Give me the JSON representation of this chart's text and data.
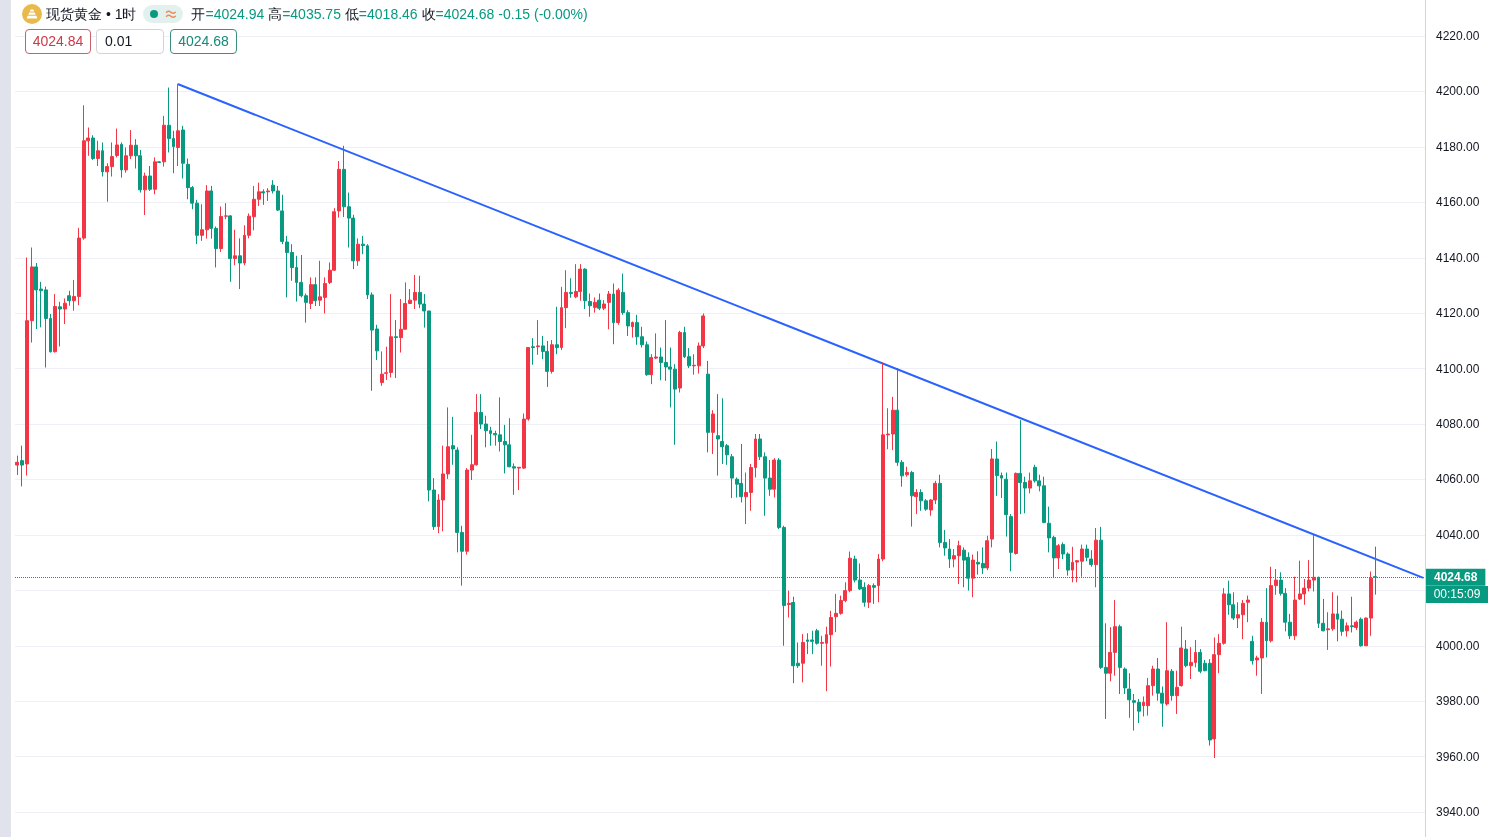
{
  "chart_data": {
    "type": "candlestick",
    "title": "现货黄金 • 1时",
    "categories": [
      null,
      null,
      null,
      null,
      null,
      null,
      null,
      null,
      null,
      null,
      null,
      null,
      null,
      null,
      null,
      null,
      null,
      null,
      null,
      null,
      null,
      null,
      null,
      null,
      null,
      null,
      null,
      null,
      null,
      null,
      null,
      null,
      null,
      null,
      null,
      null,
      null,
      null,
      null,
      null,
      null,
      null,
      null,
      null,
      null,
      null,
      null,
      null,
      null,
      null,
      null,
      null,
      null,
      null,
      null,
      null,
      null,
      null,
      null,
      null,
      null,
      null,
      null,
      null,
      null,
      null,
      null,
      null,
      null,
      null,
      null,
      null,
      null,
      null,
      null,
      null,
      null,
      null,
      null,
      null,
      null,
      null,
      null,
      null,
      null,
      null,
      null,
      null,
      null,
      null,
      null,
      null,
      null,
      null,
      null,
      null,
      null,
      null,
      null,
      null,
      null,
      null,
      null,
      null,
      null,
      null,
      null,
      null,
      null,
      null,
      null,
      null,
      null,
      null,
      null,
      null,
      null,
      null,
      null,
      null,
      null,
      null,
      null,
      null,
      null,
      null,
      null,
      null,
      null,
      null,
      null,
      null,
      null,
      null,
      null,
      null,
      null,
      null,
      null,
      null,
      null,
      null,
      null,
      null,
      null,
      null,
      null,
      null,
      null,
      null,
      null,
      null,
      null,
      null,
      null,
      null,
      null,
      null,
      null,
      null,
      null,
      null,
      null,
      null,
      null,
      null,
      null,
      null,
      null,
      null,
      null,
      null,
      null,
      null,
      null,
      null,
      null,
      null,
      null,
      null,
      null,
      null,
      null,
      null,
      null,
      null,
      null,
      null,
      null,
      null,
      null,
      null,
      null,
      null,
      null,
      null,
      null,
      null,
      null,
      null,
      null,
      null,
      null,
      null,
      null,
      null,
      null,
      null,
      null,
      null,
      null,
      null,
      null,
      null,
      null,
      null,
      null,
      null,
      null,
      null,
      null,
      null,
      null,
      null,
      null,
      null,
      null,
      null,
      null,
      null,
      null,
      null,
      null,
      null,
      null,
      null,
      null,
      null,
      null,
      null,
      null,
      null,
      null,
      null,
      null,
      null,
      null,
      null,
      null,
      null,
      null,
      null,
      null,
      null,
      null,
      null,
      null,
      null,
      null,
      null,
      null,
      null,
      null,
      null,
      null,
      null,
      null,
      null,
      null,
      null,
      null,
      null,
      null,
      null,
      null,
      null,
      null,
      null,
      null,
      null,
      null,
      null,
      null,
      null,
      null,
      null,
      null,
      null,
      null,
      null,
      null,
      null,
      null,
      null,
      null,
      null,
      null,
      null
    ],
    "ohlc": [
      [
        4065.2,
        4068.6,
        4061.6,
        4066.2
      ],
      [
        4066.8,
        4072.2,
        4057.5,
        4065.2
      ],
      [
        4065.6,
        4140.1,
        4061.4,
        4117.3
      ],
      [
        4117.3,
        4143.7,
        4109.4,
        4136.7
      ],
      [
        4136.7,
        4138.1,
        4114.3,
        4128.4
      ],
      [
        4128.7,
        4131.3,
        4114.9,
        4128.1
      ],
      [
        4128.4,
        4129.6,
        4100.4,
        4118.1
      ],
      [
        4118.1,
        4119.7,
        4105.8,
        4106.1
      ],
      [
        4106.1,
        4126.9,
        4105.8,
        4122.4
      ],
      [
        4122.3,
        4124.1,
        4108.0,
        4121.5
      ],
      [
        4121.5,
        4125.3,
        4116.1,
        4123.6
      ],
      [
        4126.3,
        4128.1,
        4122.7,
        4124.5
      ],
      [
        4124.5,
        4132.0,
        4120.9,
        4126.0
      ],
      [
        4126.0,
        4150.8,
        4122.9,
        4147.1
      ],
      [
        4147.1,
        4195.0,
        4146.5,
        4182.2
      ],
      [
        4182.2,
        4187.0,
        4176.8,
        4183.2
      ],
      [
        4183.2,
        4184.2,
        4175.3,
        4175.8
      ],
      [
        4175.8,
        4182.2,
        4173.1,
        4178.6
      ],
      [
        4178.6,
        4181.6,
        4169.3,
        4171.0
      ],
      [
        4171.0,
        4174.1,
        4160.2,
        4172.9
      ],
      [
        4172.9,
        4181.6,
        4169.3,
        4176.5
      ],
      [
        4176.9,
        4186.6,
        4176.2,
        4180.7
      ],
      [
        4180.9,
        4181.6,
        4168.9,
        4171.7
      ],
      [
        4171.7,
        4179.8,
        4170.7,
        4176.8
      ],
      [
        4176.8,
        4186.1,
        4175.6,
        4180.6
      ],
      [
        4180.6,
        4182.8,
        4172.2,
        4176.8
      ],
      [
        4176.8,
        4178.9,
        4163.5,
        4164.5
      ],
      [
        4164.5,
        4170.7,
        4155.4,
        4169.5
      ],
      [
        4169.5,
        4173.1,
        4164.1,
        4164.7
      ],
      [
        4164.7,
        4176.2,
        4162.9,
        4174.6
      ],
      [
        4174.6,
        4174.8,
        4174.2,
        4174.4
      ],
      [
        4174.6,
        4191.2,
        4172.9,
        4187.8
      ],
      [
        4187.8,
        4201.4,
        4178.0,
        4183.0
      ],
      [
        4183.0,
        4185.8,
        4170.5,
        4180.1
      ],
      [
        4179.8,
        4202.6,
        4173.1,
        4185.8
      ],
      [
        4186.1,
        4187.6,
        4168.6,
        4174.1
      ],
      [
        4173.7,
        4175.8,
        4161.1,
        4165.3
      ],
      [
        4165.3,
        4165.9,
        4157.5,
        4159.7
      ],
      [
        4159.7,
        4160.9,
        4144.9,
        4148.1
      ],
      [
        4148.1,
        4159.3,
        4146.1,
        4150.1
      ],
      [
        4150.1,
        4166.2,
        4146.9,
        4164.1
      ],
      [
        4164.1,
        4165.9,
        4146.9,
        4150.6
      ],
      [
        4150.6,
        4151.3,
        4136.5,
        4143.3
      ],
      [
        4143.3,
        4158.5,
        4142.1,
        4154.9
      ],
      [
        4155.0,
        4159.7,
        4153.9,
        4155.1
      ],
      [
        4155.1,
        4155.4,
        4131.3,
        4139.7
      ],
      [
        4139.7,
        4150.1,
        4137.3,
        4140.7
      ],
      [
        4140.7,
        4147.0,
        4128.7,
        4138.1
      ],
      [
        4138.1,
        4151.7,
        4137.3,
        4148.1
      ],
      [
        4148.1,
        4156.0,
        4147.0,
        4155.0
      ],
      [
        4154.8,
        4165.9,
        4149.9,
        4161.1
      ],
      [
        4161.1,
        4167.1,
        4158.7,
        4163.8
      ],
      [
        4163.8,
        4164.7,
        4159.1,
        4163.4
      ],
      [
        4163.8,
        4165.1,
        4160.5,
        4164.1
      ],
      [
        4166.2,
        4168.0,
        4163.2,
        4164.1
      ],
      [
        4164.1,
        4165.9,
        4156.9,
        4157.2
      ],
      [
        4156.9,
        4162.7,
        4144.9,
        4145.9
      ],
      [
        4145.7,
        4147.9,
        4125.7,
        4141.9
      ],
      [
        4141.9,
        4144.9,
        4131.7,
        4136.5
      ],
      [
        4136.5,
        4140.7,
        4124.2,
        4131.1
      ],
      [
        4131.1,
        4141.0,
        4125.7,
        4126.3
      ],
      [
        4126.3,
        4127.1,
        4116.6,
        4123.9
      ],
      [
        4123.5,
        4132.9,
        4121.5,
        4130.3
      ],
      [
        4130.3,
        4132.9,
        4122.6,
        4124.5
      ],
      [
        4124.7,
        4138.9,
        4122.6,
        4125.9
      ],
      [
        4125.7,
        4132.9,
        4119.9,
        4130.7
      ],
      [
        4131.1,
        4138.3,
        4130.5,
        4135.5
      ],
      [
        4135.5,
        4157.9,
        4135.3,
        4156.6
      ],
      [
        4156.9,
        4174.9,
        4154.5,
        4171.9
      ],
      [
        4171.9,
        4180.4,
        4154.7,
        4158.4
      ],
      [
        4158.4,
        4163.5,
        4143.7,
        4154.3
      ],
      [
        4154.3,
        4155.5,
        4135.9,
        4138.9
      ],
      [
        4138.9,
        4147.0,
        4137.1,
        4144.9
      ],
      [
        4144.9,
        4147.9,
        4141.3,
        4144.4
      ],
      [
        4144.3,
        4144.9,
        4125.1,
        4126.6
      ],
      [
        4126.6,
        4127.5,
        4092.0,
        4113.9
      ],
      [
        4114.3,
        4115.8,
        4103.1,
        4106.4
      ],
      [
        4095.0,
        4106.2,
        4093.8,
        4098.0
      ],
      [
        4098.3,
        4107.9,
        4095.9,
        4098.5
      ],
      [
        4098.6,
        4126.9,
        4096.8,
        4111.5
      ],
      [
        4111.5,
        4117.5,
        4096.6,
        4111.2
      ],
      [
        4111.2,
        4125.1,
        4105.8,
        4114.2
      ],
      [
        4114.2,
        4131.1,
        4114.2,
        4123.5
      ],
      [
        4123.5,
        4128.7,
        4123.3,
        4124.7
      ],
      [
        4124.7,
        4133.8,
        4121.5,
        4127.5
      ],
      [
        4127.5,
        4133.5,
        4121.8,
        4123.3
      ],
      [
        4123.3,
        4126.9,
        4114.8,
        4120.8
      ],
      [
        4120.8,
        4120.8,
        4052.1,
        4056.2
      ],
      [
        4056.2,
        4060.5,
        4041.8,
        4043.0
      ],
      [
        4043.0,
        4054.7,
        4040.6,
        4052.6
      ],
      [
        4052.6,
        4072.2,
        4041.3,
        4062.0
      ],
      [
        4062.0,
        4086.0,
        4060.2,
        4071.8
      ],
      [
        4072.2,
        4082.6,
        4065.3,
        4071.0
      ],
      [
        4070.6,
        4071.6,
        4033.7,
        4040.9
      ],
      [
        4040.9,
        4043.3,
        4021.7,
        4034.1
      ],
      [
        4034.1,
        4064.1,
        4032.9,
        4063.4
      ],
      [
        4063.4,
        4076.1,
        4059.8,
        4065.3
      ],
      [
        4065.3,
        4090.8,
        4065.0,
        4084.2
      ],
      [
        4084.2,
        4090.8,
        4078.2,
        4080.0
      ],
      [
        4080.0,
        4083.0,
        4071.6,
        4077.6
      ],
      [
        4077.6,
        4079.0,
        4072.2,
        4076.6
      ],
      [
        4076.6,
        4077.6,
        4072.2,
        4076.1
      ],
      [
        4076.1,
        4089.6,
        4070.1,
        4073.7
      ],
      [
        4073.7,
        4079.7,
        4062.2,
        4072.5
      ],
      [
        4072.5,
        4082.1,
        4064.4,
        4064.6
      ],
      [
        4064.6,
        4065.8,
        4054.5,
        4064.1
      ],
      [
        4064.1,
        4064.4,
        4056.2,
        4064.4
      ],
      [
        4064.1,
        4083.8,
        4063.8,
        4081.8
      ],
      [
        4081.8,
        4107.6,
        4081.2,
        4107.6
      ],
      [
        4107.9,
        4111.0,
        4101.4,
        4107.6
      ],
      [
        4107.9,
        4117.5,
        4105.0,
        4108.2
      ],
      [
        4108.2,
        4111.8,
        4103.4,
        4106.2
      ],
      [
        4106.2,
        4110.0,
        4093.4,
        4099.0
      ],
      [
        4099.0,
        4110.3,
        4098.2,
        4108.6
      ],
      [
        4108.6,
        4122.3,
        4105.2,
        4107.6
      ],
      [
        4107.6,
        4129.5,
        4106.7,
        4122.0
      ],
      [
        4122.0,
        4135.5,
        4114.6,
        4127.5
      ],
      [
        4127.5,
        4132.6,
        4125.6,
        4127.1
      ],
      [
        4125.9,
        4137.7,
        4125.4,
        4127.8
      ],
      [
        4127.8,
        4137.7,
        4124.5,
        4135.9
      ],
      [
        4135.9,
        4136.2,
        4121.5,
        4124.5
      ],
      [
        4124.2,
        4127.1,
        4118.7,
        4122.7
      ],
      [
        4122.1,
        4125.7,
        4120.2,
        4123.9
      ],
      [
        4124.7,
        4127.1,
        4121.1,
        4121.8
      ],
      [
        4121.8,
        4124.7,
        4121.1,
        4123.3
      ],
      [
        4123.9,
        4128.0,
        4114.2,
        4126.9
      ],
      [
        4126.9,
        4130.7,
        4108.8,
        4116.6
      ],
      [
        4116.6,
        4129.0,
        4115.8,
        4128.3
      ],
      [
        4127.5,
        4134.3,
        4119.4,
        4120.2
      ],
      [
        4120.2,
        4121.1,
        4111.8,
        4115.4
      ],
      [
        4115.1,
        4117.0,
        4111.2,
        4116.6
      ],
      [
        4116.6,
        4119.4,
        4108.6,
        4111.5
      ],
      [
        4111.5,
        4115.1,
        4107.6,
        4108.6
      ],
      [
        4108.6,
        4109.8,
        4097.4,
        4097.8
      ],
      [
        4097.8,
        4105.2,
        4094.4,
        4104.0
      ],
      [
        4103.8,
        4112.7,
        4103.4,
        4104.2
      ],
      [
        4104.2,
        4107.6,
        4095.8,
        4102.2
      ],
      [
        4102.2,
        4117.5,
        4095.6,
        4100.6
      ],
      [
        4100.6,
        4107.6,
        4086.0,
        4099.8
      ],
      [
        4099.8,
        4101.6,
        4072.5,
        4092.6
      ],
      [
        4093.0,
        4113.6,
        4091.4,
        4113.0
      ],
      [
        4113.0,
        4115.1,
        4103.8,
        4104.3
      ],
      [
        4104.3,
        4107.4,
        4100.2,
        4101.0
      ],
      [
        4101.0,
        4105.2,
        4097.8,
        4101.2
      ],
      [
        4101.0,
        4109.4,
        4098.2,
        4108.2
      ],
      [
        4108.2,
        4119.9,
        4107.4,
        4119.0
      ],
      [
        4098.0,
        4102.8,
        4069.8,
        4077.0
      ],
      [
        4077.0,
        4085.0,
        4069.2,
        4083.6
      ],
      [
        4075.8,
        4090.8,
        4061.4,
        4074.6
      ],
      [
        4073.7,
        4089.3,
        4065.6,
        4071.8
      ],
      [
        4072.2,
        4072.8,
        4065.3,
        4068.9
      ],
      [
        4068.2,
        4069.2,
        4053.3,
        4060.5
      ],
      [
        4060.1,
        4060.7,
        4053.5,
        4058.3
      ],
      [
        4058.6,
        4072.8,
        4051.7,
        4053.8
      ],
      [
        4053.8,
        4062.5,
        4043.9,
        4055.3
      ],
      [
        4055.3,
        4065.6,
        4048.7,
        4064.3
      ],
      [
        4064.3,
        4076.4,
        4060.7,
        4074.6
      ],
      [
        4074.6,
        4076.4,
        4067.0,
        4068.2
      ],
      [
        4068.2,
        4069.8,
        4046.9,
        4060.5
      ],
      [
        4060.5,
        4067.0,
        4054.1,
        4056.5
      ],
      [
        4056.5,
        4067.7,
        4053.5,
        4067.0
      ],
      [
        4067.0,
        4067.7,
        4042.1,
        4042.7
      ],
      [
        4042.7,
        4043.3,
        4000.0,
        4014.5
      ],
      [
        4014.9,
        4019.9,
        4010.2,
        4015.3
      ],
      [
        4015.6,
        4017.7,
        3986.5,
        3992.8
      ],
      [
        3993.7,
        4001.2,
        3992.0,
        3992.8
      ],
      [
        3993.7,
        4004.2,
        3986.8,
        4001.2
      ],
      [
        4002.1,
        4004.5,
        3997.0,
        4001.6
      ],
      [
        4002.1,
        4005.4,
        3997.0,
        4001.6
      ],
      [
        4005.4,
        4006.1,
        4000.4,
        4000.9
      ],
      [
        4000.9,
        4003.6,
        3992.8,
        4001.2
      ],
      [
        4000.9,
        4006.9,
        3983.6,
        4004.0
      ],
      [
        4004.0,
        4012.6,
        3992.5,
        4010.2
      ],
      [
        4010.5,
        4018.7,
        4004.9,
        4011.7
      ],
      [
        4011.7,
        4018.1,
        4011.2,
        4016.3
      ],
      [
        4016.3,
        4022.9,
        4015.7,
        4019.9
      ],
      [
        4019.9,
        4034.0,
        4019.3,
        4031.6
      ],
      [
        4031.3,
        4032.5,
        4022.9,
        4023.7
      ],
      [
        4023.7,
        4029.7,
        4020.1,
        4020.5
      ],
      [
        4021.1,
        4022.9,
        4014.1,
        4015.7
      ],
      [
        4015.7,
        4022.3,
        4013.6,
        4021.7
      ],
      [
        4021.7,
        4022.5,
        4015.1,
        4021.1
      ],
      [
        4021.7,
        4033.1,
        4015.7,
        4031.3
      ],
      [
        4031.3,
        4102.2,
        4030.5,
        4076.1
      ],
      [
        4076.1,
        4085.7,
        4070.9,
        4076.4
      ],
      [
        4076.4,
        4089.8,
        4070.6,
        4085.0
      ],
      [
        4085.0,
        4100.2,
        4064.9,
        4066.2
      ],
      [
        4066.2,
        4067.0,
        4057.4,
        4061.3
      ],
      [
        4061.7,
        4064.6,
        4061.0,
        4062.5
      ],
      [
        4062.5,
        4063.1,
        4043.0,
        4054.1
      ],
      [
        4053.8,
        4056.5,
        4047.5,
        4055.3
      ],
      [
        4055.3,
        4056.5,
        4048.7,
        4052.3
      ],
      [
        4052.3,
        4052.9,
        4048.7,
        4049.3
      ],
      [
        4049.0,
        4052.9,
        4046.9,
        4052.6
      ],
      [
        4052.6,
        4059.5,
        4051.1,
        4058.6
      ],
      [
        4058.6,
        4061.7,
        4035.5,
        4037.3
      ],
      [
        4037.3,
        4041.8,
        4032.5,
        4035.3
      ],
      [
        4034.9,
        4038.5,
        4028.1,
        4031.3
      ],
      [
        4031.3,
        4034.9,
        4028.3,
        4032.5
      ],
      [
        4032.5,
        4037.9,
        4022.3,
        4036.1
      ],
      [
        4034.5,
        4035.5,
        4021.1,
        4030.9
      ],
      [
        4031.9,
        4033.7,
        4019.9,
        4024.4
      ],
      [
        4024.4,
        4032.9,
        4017.5,
        4030.9
      ],
      [
        4030.1,
        4034.1,
        4025.7,
        4029.5
      ],
      [
        4029.7,
        4035.5,
        4025.9,
        4028.1
      ],
      [
        4028.1,
        4039.7,
        4027.3,
        4037.9
      ],
      [
        4038.5,
        4071.0,
        4035.5,
        4067.4
      ],
      [
        4067.4,
        4073.7,
        4054.1,
        4061.4
      ],
      [
        4061.4,
        4062.5,
        4053.3,
        4060.5
      ],
      [
        4060.1,
        4062.5,
        4039.4,
        4047.3
      ],
      [
        4046.6,
        4047.5,
        4026.9,
        4033.7
      ],
      [
        4033.3,
        4062.5,
        4032.9,
        4062.2
      ],
      [
        4062.2,
        4081.4,
        4047.5,
        4058.9
      ],
      [
        4058.9,
        4061.0,
        4047.8,
        4056.9
      ],
      [
        4056.9,
        4062.5,
        4055.0,
        4059.5
      ],
      [
        4064.4,
        4065.3,
        4058.9,
        4059.5
      ],
      [
        4059.5,
        4061.7,
        4055.7,
        4057.7
      ],
      [
        4057.7,
        4061.0,
        4044.2,
        4044.5
      ],
      [
        4044.2,
        4050.2,
        4033.7,
        4038.9
      ],
      [
        4039.1,
        4039.7,
        4024.4,
        4031.7
      ],
      [
        4031.7,
        4036.7,
        4027.7,
        4036.1
      ],
      [
        4036.5,
        4037.3,
        4031.3,
        4033.1
      ],
      [
        4033.1,
        4033.7,
        4025.3,
        4027.3
      ],
      [
        4027.3,
        4035.7,
        4022.9,
        4030.1
      ],
      [
        4030.2,
        4030.9,
        4022.9,
        4030.7
      ],
      [
        4030.5,
        4036.5,
        4024.9,
        4034.9
      ],
      [
        4034.9,
        4036.5,
        4030.5,
        4031.9
      ],
      [
        4031.3,
        4034.5,
        4028.5,
        4029.3
      ],
      [
        4029.3,
        4042.5,
        4021.1,
        4038.1
      ],
      [
        4038.1,
        4042.9,
        3991.6,
        3992.2
      ],
      [
        3992.2,
        4008.1,
        3973.6,
        3990.1
      ],
      [
        3990.1,
        4006.7,
        3987.2,
        3997.6
      ],
      [
        3997.6,
        4016.5,
        3989.2,
        4006.9
      ],
      [
        4006.9,
        4007.6,
        3982.6,
        3992.2
      ],
      [
        3991.6,
        3992.2,
        3982.6,
        3984.8
      ],
      [
        3984.4,
        3990.1,
        3974.0,
        3980.5
      ],
      [
        3980.2,
        3982.6,
        3969.4,
        3979.6
      ],
      [
        3979.6,
        3980.8,
        3972.1,
        3976.4
      ],
      [
        3978.4,
        3981.7,
        3974.5,
        3979.6
      ],
      [
        3978.4,
        3988.4,
        3974.8,
        3985.6
      ],
      [
        3985.6,
        3992.8,
        3982.0,
        3991.6
      ],
      [
        3991.6,
        3995.6,
        3980.2,
        3982.9
      ],
      [
        3982.9,
        3985.3,
        3970.8,
        3979.3
      ],
      [
        3979.0,
        4008.5,
        3978.4,
        3991.0
      ],
      [
        3990.8,
        3991.6,
        3980.2,
        3982.0
      ],
      [
        3982.0,
        3991.0,
        3975.4,
        3985.0
      ],
      [
        3985.6,
        4006.9,
        3985.3,
        3999.2
      ],
      [
        3998.8,
        4002.1,
        3992.2,
        3992.8
      ],
      [
        3992.8,
        3999.5,
        3988.0,
        3994.0
      ],
      [
        3994.0,
        4002.1,
        3992.2,
        3997.6
      ],
      [
        3997.6,
        3998.8,
        3990.1,
        3990.8
      ],
      [
        3993.7,
        3994.9,
        3990.8,
        3991.0
      ],
      [
        3993.7,
        3995.2,
        3964.0,
        3966.0
      ],
      [
        3966.4,
        4003.0,
        3959.5,
        3996.8
      ],
      [
        3996.8,
        4004.2,
        3990.1,
        4000.9
      ],
      [
        4000.9,
        4020.8,
        4000.4,
        4018.7
      ],
      [
        4018.7,
        4023.5,
        4011.2,
        4014.8
      ],
      [
        4014.8,
        4019.3,
        4009.3,
        4010.0
      ],
      [
        4010.0,
        4015.7,
        4006.4,
        4011.2
      ],
      [
        4011.2,
        4016.5,
        4002.4,
        4015.3
      ],
      [
        4015.7,
        4018.1,
        4008.5,
        4016.5
      ],
      [
        4001.6,
        4003.6,
        3993.2,
        3994.6
      ],
      [
        3994.9,
        3996.4,
        3989.2,
        3995.6
      ],
      [
        3995.6,
        4010.0,
        3982.6,
        4008.5
      ],
      [
        4008.5,
        4020.8,
        3995.8,
        4001.8
      ],
      [
        4001.8,
        4028.5,
        4001.2,
        4021.7
      ],
      [
        4021.7,
        4027.7,
        4018.4,
        4023.7
      ],
      [
        4023.7,
        4026.5,
        4018.1,
        4018.9
      ],
      [
        4018.9,
        4020.8,
        4005.2,
        4008.5
      ],
      [
        4008.5,
        4011.5,
        4002.4,
        4003.6
      ],
      [
        4003.6,
        4024.9,
        4002.1,
        4016.5
      ],
      [
        4016.9,
        4030.7,
        4016.5,
        4018.7
      ],
      [
        4018.7,
        4024.1,
        4014.8,
        4020.8
      ],
      [
        4020.8,
        4030.9,
        4019.6,
        4023.7
      ],
      [
        4023.7,
        4040.3,
        4019.6,
        4024.7
      ],
      [
        4024.7,
        4024.9,
        4006.4,
        4008.1
      ],
      [
        4008.1,
        4016.9,
        4005.2,
        4005.4
      ],
      [
        4005.8,
        4012.1,
        3998.5,
        4006.1
      ],
      [
        4006.1,
        4019.3,
        4005.4,
        4011.5
      ],
      [
        4011.5,
        4018.1,
        4001.6,
        4009.6
      ],
      [
        4009.6,
        4012.7,
        4003.6,
        4005.2
      ],
      [
        4005.4,
        4008.4,
        4003.3,
        4007.2
      ],
      [
        4007.2,
        4017.7,
        4004.8,
        4006.9
      ],
      [
        4006.6,
        4009.1,
        4005.7,
        4008.5
      ],
      [
        4009.6,
        4010.2,
        3999.7,
        4000.0
      ],
      [
        4000.0,
        4010.2,
        4000.0,
        4010.0
      ],
      [
        4010.0,
        4026.8,
        4003.6,
        4024.4
      ],
      [
        4024.94,
        4035.75,
        4018.46,
        4024.68
      ],
      null,
      null,
      null,
      null,
      null,
      null,
      null,
      null,
      null,
      null
    ],
    "colors": [
      "#f23645",
      "#089981",
      "#f23645",
      "#f23645",
      "#089981",
      "#089981",
      "#089981",
      "#089981",
      "#f23645",
      "#089981",
      "#f23645",
      "#089981",
      "#f23645",
      "#f23645",
      "#f23645",
      "#f23645",
      "#089981",
      "#f23645",
      "#089981",
      "#f23645",
      "#f23645",
      "#f23645",
      "#089981",
      "#f23645",
      "#f23645",
      "#089981",
      "#089981",
      "#f23645",
      "#089981",
      "#f23645",
      "#089981",
      "#f23645",
      "#089981",
      "#089981",
      "#f23645",
      "#089981",
      "#089981",
      "#089981",
      "#089981",
      "#f23645",
      "#f23645",
      "#089981",
      "#089981",
      "#f23645",
      "#f23645",
      "#089981",
      "#f23645",
      "#089981",
      "#f23645",
      "#f23645",
      "#f23645",
      "#f23645",
      "#089981",
      "#f23645",
      "#089981",
      "#089981",
      "#089981",
      "#089981",
      "#089981",
      "#089981",
      "#089981",
      "#089981",
      "#f23645",
      "#089981",
      "#f23645",
      "#f23645",
      "#f23645",
      "#f23645",
      "#f23645",
      "#089981",
      "#089981",
      "#089981",
      "#f23645",
      "#089981",
      "#089981",
      "#089981",
      "#089981",
      "#f23645",
      "#f23645",
      "#f23645",
      "#089981",
      "#f23645",
      "#f23645",
      "#f23645",
      "#f23645",
      "#089981",
      "#089981",
      "#089981",
      "#089981",
      "#f23645",
      "#f23645",
      "#f23645",
      "#089981",
      "#089981",
      "#089981",
      "#f23645",
      "#f23645",
      "#f23645",
      "#089981",
      "#089981",
      "#089981",
      "#089981",
      "#089981",
      "#089981",
      "#089981",
      "#089981",
      "#f23645",
      "#f23645",
      "#f23645",
      "#089981",
      "#f23645",
      "#089981",
      "#089981",
      "#f23645",
      "#089981",
      "#f23645",
      "#f23645",
      "#089981",
      "#f23645",
      "#f23645",
      "#089981",
      "#089981",
      "#f23645",
      "#089981",
      "#f23645",
      "#f23645",
      "#089981",
      "#f23645",
      "#089981",
      "#089981",
      "#f23645",
      "#089981",
      "#089981",
      "#089981",
      "#f23645",
      "#f23645",
      "#089981",
      "#089981",
      "#089981",
      "#089981",
      "#f23645",
      "#089981",
      "#089981",
      "#f23645",
      "#f23645",
      "#f23645",
      "#089981",
      "#f23645",
      "#089981",
      "#089981",
      "#089981",
      "#089981",
      "#089981",
      "#089981",
      "#f23645",
      "#f23645",
      "#f23645",
      "#089981",
      "#089981",
      "#089981",
      "#f23645",
      "#089981",
      "#089981",
      "#f23645",
      "#089981",
      "#089981",
      "#f23645",
      "#089981",
      "#089981",
      "#089981",
      "#f23645",
      "#f23645",
      "#f23645",
      "#f23645",
      "#f23645",
      "#f23645",
      "#f23645",
      "#089981",
      "#089981",
      "#089981",
      "#f23645",
      "#089981",
      "#f23645",
      "#f23645",
      "#f23645",
      "#f23645",
      "#089981",
      "#089981",
      "#f23645",
      "#089981",
      "#f23645",
      "#089981",
      "#089981",
      "#f23645",
      "#f23645",
      "#089981",
      "#089981",
      "#089981",
      "#f23645",
      "#f23645",
      "#089981",
      "#089981",
      "#f23645",
      "#089981",
      "#089981",
      "#f23645",
      "#f23645",
      "#089981",
      "#089981",
      "#089981",
      "#089981",
      "#f23645",
      "#089981",
      "#089981",
      "#f23645",
      "#089981",
      "#089981",
      "#089981",
      "#089981",
      "#089981",
      "#f23645",
      "#089981",
      "#089981",
      "#f23645",
      "#f23645",
      "#f23645",
      "#089981",
      "#089981",
      "#f23645",
      "#089981",
      "#089981",
      "#f23645",
      "#f23645",
      "#089981",
      "#089981",
      "#089981",
      "#089981",
      "#089981",
      "#f23645",
      "#f23645",
      "#f23645",
      "#089981",
      "#089981",
      "#f23645",
      "#089981",
      "#f23645",
      "#f23645",
      "#089981",
      "#f23645",
      "#f23645",
      "#089981",
      "#089981",
      "#089981",
      "#f23645",
      "#f23645",
      "#f23645",
      "#089981",
      "#089981",
      "#f23645",
      "#f23645",
      "#f23645",
      "#089981",
      "#f23645",
      "#f23645",
      "#089981",
      "#f23645",
      "#f23645",
      "#089981",
      "#089981",
      "#089981",
      "#f23645",
      "#f23645",
      "#f23645",
      "#f23645",
      "#f23645",
      "#089981",
      "#089981",
      "#f23645",
      "#f23645",
      "#089981",
      "#089981",
      "#f23645",
      "#089981",
      "#f23645",
      "#089981",
      "#f23645",
      "#f23645",
      "#089981",
      null,
      null,
      null,
      null,
      null,
      null,
      null,
      null,
      null,
      null
    ],
    "series": [
      {
        "type": "line",
        "color": "#2962ff",
        "values": [
          null,
          null,
          null,
          null,
          null,
          null,
          null,
          null,
          null,
          null,
          null,
          null,
          null,
          null,
          null,
          null,
          null,
          null,
          null,
          null,
          null,
          null,
          null,
          null,
          null,
          null,
          null,
          null,
          null,
          null,
          null,
          null,
          null,
          null,
          4202.6,
          null,
          null,
          null,
          null,
          null,
          null,
          null,
          null,
          null,
          null,
          null,
          null,
          null,
          null,
          null,
          null,
          null,
          null,
          null,
          null,
          null,
          null,
          null,
          null,
          null,
          null,
          null,
          null,
          null,
          null,
          null,
          null,
          null,
          null,
          null,
          null,
          null,
          null,
          null,
          null,
          null,
          null,
          null,
          null,
          null,
          null,
          null,
          null,
          null,
          null,
          null,
          null,
          null,
          null,
          null,
          null,
          null,
          null,
          null,
          null,
          null,
          null,
          null,
          null,
          null,
          null,
          null,
          null,
          null,
          null,
          null,
          null,
          null,
          null,
          null,
          null,
          null,
          null,
          null,
          null,
          null,
          null,
          null,
          null,
          null,
          null,
          null,
          null,
          null,
          null,
          null,
          null,
          null,
          null,
          null,
          null,
          null,
          null,
          null,
          null,
          null,
          null,
          null,
          null,
          null,
          null,
          null,
          null,
          null,
          null,
          null,
          null,
          null,
          null,
          null,
          null,
          null,
          null,
          null,
          null,
          null,
          null,
          null,
          null,
          null,
          null,
          null,
          null,
          null,
          null,
          null,
          null,
          null,
          null,
          null,
          null,
          null,
          null,
          null,
          null,
          null,
          null,
          null,
          null,
          null,
          null,
          null,
          null,
          null,
          null,
          null,
          null,
          null,
          null,
          null,
          null,
          null,
          null,
          null,
          null,
          null,
          null,
          null,
          null,
          null,
          null,
          null,
          null,
          null,
          null,
          null,
          null,
          null,
          null,
          null,
          null,
          null,
          null,
          null,
          null,
          null,
          null,
          null,
          null,
          null,
          null,
          null,
          null,
          null,
          null,
          null,
          null,
          null,
          null,
          null,
          null,
          null,
          null,
          null,
          null,
          null,
          null,
          null,
          null,
          null,
          null,
          null,
          null,
          null,
          null,
          null,
          null,
          null,
          null,
          null,
          null,
          null,
          null,
          null,
          null,
          null,
          null,
          null,
          null,
          null,
          null,
          null,
          null,
          null,
          null,
          null,
          null,
          null,
          null,
          null,
          null,
          null,
          null,
          null,
          null,
          null,
          null,
          null,
          null,
          null,
          null,
          null,
          null,
          null,
          null,
          null,
          null,
          null,
          null,
          null,
          null,
          null,
          null,
          null,
          null,
          null,
          null,
          4024.6
        ]
      }
    ],
    "ylim": [
      3931,
      4233
    ],
    "yticks": [
      {
        "value": 3940,
        "label": "3940.00"
      },
      {
        "value": 3960,
        "label": "3960.00"
      },
      {
        "value": 3980,
        "label": "3980.00"
      },
      {
        "value": 4000,
        "label": "4000.00"
      },
      {
        "value": 4020,
        "label": null
      },
      {
        "value": 4040,
        "label": "4040.00"
      },
      {
        "value": 4060,
        "label": "4060.00"
      },
      {
        "value": 4080,
        "label": "4080.00"
      },
      {
        "value": 4100,
        "label": "4100.00"
      },
      {
        "value": 4120,
        "label": "4120.00"
      },
      {
        "value": 4140,
        "label": "4140.00"
      },
      {
        "value": 4160,
        "label": "4160.00"
      },
      {
        "value": 4180,
        "label": "4180.00"
      },
      {
        "value": 4200,
        "label": "4200.00"
      },
      {
        "value": 4220,
        "label": "4220.00"
      }
    ],
    "grid": "y",
    "tick_labels": "y",
    "ref_lines": [
      {
        "axis": "y",
        "value": 4024.68,
        "label": "4024.68",
        "color": "#089981",
        "line_style": "dotted"
      }
    ],
    "annotations": [
      "开=4024.94 高=4035.75 低=4018.46 收=4024.68 -0.15 (-0.00%)",
      "4024.84",
      "0.01",
      "4024.68",
      "00:15:09"
    ]
  }
}
